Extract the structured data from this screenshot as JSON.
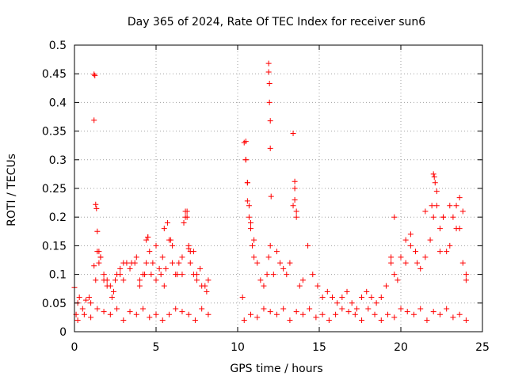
{
  "chart_data": {
    "type": "scatter",
    "title": "Day 365 of 2024, Rate Of TEC Index for receiver sun6",
    "xlabel": "GPS time / hours",
    "ylabel": "ROTI / TECUs",
    "xlim": [
      0,
      25
    ],
    "ylim": [
      0,
      0.5
    ],
    "xticks": [
      "0",
      "5",
      "10",
      "15",
      "20",
      "25"
    ],
    "yticks": [
      "0",
      "0.05",
      "0.1",
      "0.15",
      "0.2",
      "0.25",
      "0.3",
      "0.35",
      "0.4",
      "0.45",
      "0.5"
    ],
    "grid": true,
    "marker": "plus",
    "color": "#ff0000",
    "series": [
      {
        "x": [
          0.0,
          0.1,
          0.2,
          0.3,
          0.5,
          0.7,
          0.9,
          1.0,
          1.2,
          1.3,
          1.4,
          1.5,
          1.6,
          1.8,
          2.0,
          2.2,
          2.4,
          2.6,
          2.8,
          3.0,
          3.2,
          3.5,
          3.8,
          4.0,
          4.2,
          4.4,
          4.5,
          4.6,
          4.8,
          5.0,
          5.2,
          5.4,
          5.5,
          5.7,
          5.9,
          6.0,
          6.2,
          6.4,
          6.6,
          6.8,
          6.9,
          7.0,
          7.1,
          7.3,
          7.5,
          7.7,
          8.0,
          8.2,
          1.2,
          1.2,
          1.25,
          1.3,
          1.35,
          1.4,
          1.5,
          1.6,
          1.8,
          2.0,
          2.3,
          2.5,
          2.8,
          3.0,
          3.4,
          3.7,
          4.0,
          4.3,
          4.4,
          4.5,
          4.7,
          5.0,
          5.3,
          5.5,
          5.6,
          5.8,
          6.0,
          6.3,
          6.6,
          6.7,
          6.8,
          6.9,
          7.0,
          7.1,
          7.3,
          7.5,
          7.8,
          8.1,
          0.2,
          0.6,
          1.0,
          1.4,
          1.8,
          2.2,
          2.6,
          3.0,
          3.4,
          3.8,
          4.2,
          4.6,
          5.0,
          5.4,
          5.8,
          6.2,
          6.6,
          7.0,
          7.4,
          7.8,
          8.2,
          10.3,
          10.4,
          10.5,
          10.6,
          10.7,
          10.8,
          10.9,
          11.0,
          11.2,
          11.4,
          11.6,
          11.8,
          11.9,
          12.0,
          12.2,
          12.4,
          12.6,
          12.8,
          13.0,
          13.2,
          13.4,
          13.5,
          13.6,
          13.8,
          14.0,
          14.3,
          14.6,
          14.9,
          15.2,
          15.5,
          15.8,
          16.1,
          16.4,
          16.7,
          17.0,
          17.3,
          17.6,
          17.9,
          18.2,
          18.5,
          18.8,
          19.1,
          19.4,
          19.6,
          19.8,
          20.0,
          20.3,
          20.6,
          20.9,
          21.2,
          21.5,
          21.8,
          22.0,
          22.2,
          22.4,
          22.6,
          22.8,
          23.0,
          23.2,
          23.4,
          23.6,
          23.8,
          24.0,
          10.5,
          10.5,
          10.6,
          10.6,
          10.7,
          10.8,
          11.0,
          11.9,
          11.9,
          11.95,
          11.95,
          12.0,
          12.0,
          12.05,
          13.4,
          13.5,
          13.5,
          13.6,
          19.4,
          19.6,
          20.3,
          20.6,
          21.0,
          21.5,
          21.9,
          22.0,
          22.05,
          22.1,
          22.2,
          22.4,
          22.6,
          23.0,
          23.4,
          23.6,
          23.8,
          24.0,
          10.4,
          10.8,
          11.2,
          11.6,
          12.0,
          12.4,
          12.8,
          13.2,
          13.6,
          14.0,
          14.4,
          14.8,
          15.2,
          15.6,
          16.0,
          16.4,
          16.8,
          17.2,
          17.6,
          18.0,
          18.4,
          18.8,
          19.2,
          19.6,
          20.0,
          20.4,
          20.8,
          21.2,
          21.6,
          22.0,
          22.4,
          22.8,
          23.2,
          23.6,
          24.0
        ],
        "y": [
          0.077,
          0.03,
          0.05,
          0.06,
          0.04,
          0.055,
          0.06,
          0.05,
          0.115,
          0.09,
          0.14,
          0.12,
          0.13,
          0.1,
          0.09,
          0.08,
          0.07,
          0.1,
          0.11,
          0.09,
          0.12,
          0.12,
          0.13,
          0.09,
          0.1,
          0.12,
          0.165,
          0.14,
          0.12,
          0.15,
          0.11,
          0.13,
          0.18,
          0.19,
          0.16,
          0.15,
          0.1,
          0.12,
          0.1,
          0.2,
          0.21,
          0.15,
          0.12,
          0.14,
          0.1,
          0.11,
          0.08,
          0.09,
          0.449,
          0.369,
          0.447,
          0.222,
          0.215,
          0.175,
          0.14,
          0.13,
          0.09,
          0.08,
          0.06,
          0.09,
          0.1,
          0.12,
          0.11,
          0.12,
          0.08,
          0.1,
          0.16,
          0.165,
          0.1,
          0.09,
          0.1,
          0.08,
          0.11,
          0.16,
          0.12,
          0.1,
          0.13,
          0.19,
          0.21,
          0.2,
          0.145,
          0.14,
          0.1,
          0.09,
          0.08,
          0.07,
          0.02,
          0.03,
          0.025,
          0.04,
          0.035,
          0.03,
          0.04,
          0.02,
          0.035,
          0.03,
          0.04,
          0.025,
          0.03,
          0.02,
          0.03,
          0.04,
          0.035,
          0.03,
          0.02,
          0.04,
          0.03,
          0.06,
          0.33,
          0.3,
          0.26,
          0.22,
          0.18,
          0.15,
          0.13,
          0.12,
          0.09,
          0.08,
          0.1,
          0.13,
          0.15,
          0.1,
          0.14,
          0.12,
          0.11,
          0.1,
          0.12,
          0.22,
          0.25,
          0.2,
          0.08,
          0.09,
          0.15,
          0.1,
          0.08,
          0.06,
          0.07,
          0.06,
          0.05,
          0.06,
          0.07,
          0.05,
          0.04,
          0.06,
          0.07,
          0.06,
          0.05,
          0.06,
          0.08,
          0.13,
          0.1,
          0.09,
          0.13,
          0.12,
          0.15,
          0.14,
          0.11,
          0.13,
          0.16,
          0.2,
          0.22,
          0.18,
          0.2,
          0.14,
          0.15,
          0.2,
          0.22,
          0.18,
          0.12,
          0.1,
          0.332,
          0.3,
          0.26,
          0.228,
          0.2,
          0.19,
          0.16,
          0.468,
          0.453,
          0.433,
          0.4,
          0.368,
          0.32,
          0.236,
          0.346,
          0.262,
          0.23,
          0.21,
          0.12,
          0.2,
          0.16,
          0.17,
          0.12,
          0.21,
          0.22,
          0.275,
          0.27,
          0.26,
          0.245,
          0.14,
          0.2,
          0.22,
          0.18,
          0.234,
          0.21,
          0.09,
          0.02,
          0.03,
          0.025,
          0.04,
          0.035,
          0.03,
          0.04,
          0.02,
          0.035,
          0.03,
          0.04,
          0.025,
          0.03,
          0.02,
          0.03,
          0.04,
          0.035,
          0.03,
          0.02,
          0.04,
          0.03,
          0.02,
          0.03,
          0.025,
          0.04,
          0.035,
          0.03,
          0.04,
          0.02,
          0.035,
          0.03,
          0.04,
          0.025,
          0.03,
          0.02
        ]
      }
    ]
  }
}
